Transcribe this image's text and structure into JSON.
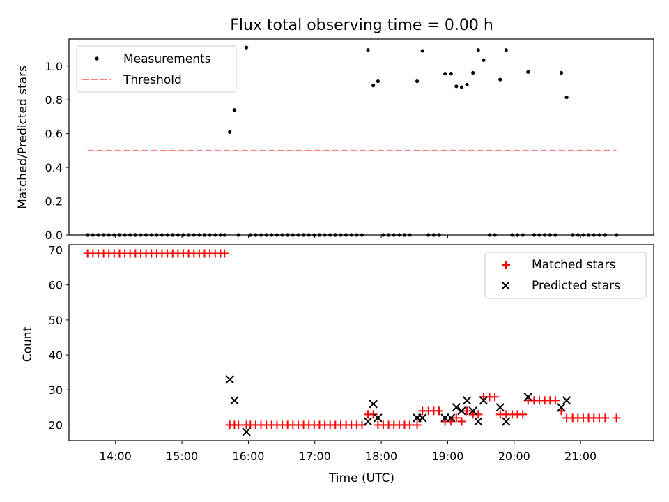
{
  "chart_data": [
    {
      "type": "scatter",
      "title": "Flux total observing time = 0.00 h",
      "xlabel": "",
      "ylabel": "Matched/Predicted stars",
      "xlim_hours": [
        13.3,
        22.1
      ],
      "ylim": [
        0,
        1.16
      ],
      "yticks": [
        0.0,
        0.2,
        0.4,
        0.6,
        0.8,
        1.0
      ],
      "ytick_labels": [
        "0.0",
        "0.2",
        "0.4",
        "0.6",
        "0.8",
        "1.0"
      ],
      "legend_position": "top-left",
      "series": [
        {
          "name": "Measurements",
          "color": "#000000",
          "marker": "dot",
          "points": [
            [
              13.58,
              0
            ],
            [
              13.66,
              0
            ],
            [
              13.74,
              0
            ],
            [
              13.82,
              0
            ],
            [
              13.9,
              0
            ],
            [
              13.98,
              0
            ],
            [
              14.06,
              0
            ],
            [
              14.14,
              0
            ],
            [
              14.22,
              0
            ],
            [
              14.3,
              0
            ],
            [
              14.38,
              0
            ],
            [
              14.46,
              0
            ],
            [
              14.54,
              0
            ],
            [
              14.62,
              0
            ],
            [
              14.7,
              0
            ],
            [
              14.78,
              0
            ],
            [
              14.86,
              0
            ],
            [
              14.94,
              0
            ],
            [
              15.02,
              0
            ],
            [
              15.1,
              0
            ],
            [
              15.18,
              0
            ],
            [
              15.26,
              0
            ],
            [
              15.34,
              0
            ],
            [
              15.42,
              0
            ],
            [
              15.5,
              0
            ],
            [
              15.58,
              0
            ],
            [
              15.64,
              0
            ],
            [
              15.72,
              0.61
            ],
            [
              15.79,
              0.74
            ],
            [
              15.85,
              0
            ],
            [
              15.97,
              1.11
            ],
            [
              16.03,
              0
            ],
            [
              16.11,
              0
            ],
            [
              16.19,
              0
            ],
            [
              16.27,
              0
            ],
            [
              16.35,
              0
            ],
            [
              16.43,
              0
            ],
            [
              16.51,
              0
            ],
            [
              16.59,
              0
            ],
            [
              16.67,
              0
            ],
            [
              16.75,
              0
            ],
            [
              16.83,
              0
            ],
            [
              16.91,
              0
            ],
            [
              16.99,
              0
            ],
            [
              17.07,
              0
            ],
            [
              17.15,
              0
            ],
            [
              17.23,
              0
            ],
            [
              17.31,
              0
            ],
            [
              17.39,
              0
            ],
            [
              17.47,
              0
            ],
            [
              17.55,
              0
            ],
            [
              17.63,
              0
            ],
            [
              17.71,
              0
            ],
            [
              17.8,
              1.095
            ],
            [
              17.88,
              0.885
            ],
            [
              17.95,
              0.91
            ],
            [
              18.03,
              0
            ],
            [
              18.11,
              0
            ],
            [
              18.19,
              0
            ],
            [
              18.27,
              0
            ],
            [
              18.35,
              0
            ],
            [
              18.43,
              0
            ],
            [
              18.54,
              0.91
            ],
            [
              18.62,
              1.09
            ],
            [
              18.71,
              0
            ],
            [
              18.79,
              0
            ],
            [
              18.87,
              0
            ],
            [
              18.96,
              0.955
            ],
            [
              19.05,
              0.955
            ],
            [
              19.13,
              0.88
            ],
            [
              19.21,
              0.875
            ],
            [
              19.29,
              0.89
            ],
            [
              19.38,
              0.96
            ],
            [
              19.46,
              1.095
            ],
            [
              19.54,
              1.035
            ],
            [
              19.63,
              0
            ],
            [
              19.71,
              0
            ],
            [
              19.79,
              0.92
            ],
            [
              19.88,
              1.095
            ],
            [
              19.97,
              0
            ],
            [
              20.05,
              0
            ],
            [
              20.13,
              0
            ],
            [
              20.21,
              0.965
            ],
            [
              20.3,
              0
            ],
            [
              20.38,
              0
            ],
            [
              20.46,
              0
            ],
            [
              20.54,
              0
            ],
            [
              20.62,
              0
            ],
            [
              20.71,
              0.96
            ],
            [
              20.79,
              0.815
            ],
            [
              20.88,
              0
            ],
            [
              20.96,
              0
            ],
            [
              21.04,
              0
            ],
            [
              21.12,
              0
            ],
            [
              21.2,
              0
            ],
            [
              21.28,
              0
            ],
            [
              21.37,
              0
            ],
            [
              21.54,
              0
            ]
          ]
        },
        {
          "name": "Threshold",
          "color": "#ff7f7f",
          "style": "dashed",
          "x_range_hours": [
            13.58,
            21.54
          ],
          "y": 0.5
        }
      ]
    },
    {
      "type": "scatter",
      "title": "",
      "xlabel": "Time (UTC)",
      "ylabel": "Count",
      "xlim_hours": [
        13.3,
        22.1
      ],
      "ylim": [
        15.5,
        71.5
      ],
      "yticks": [
        20,
        30,
        40,
        50,
        60,
        70
      ],
      "ytick_labels": [
        "20",
        "30",
        "40",
        "50",
        "60",
        "70"
      ],
      "xticks_hours": [
        14,
        15,
        16,
        17,
        18,
        19,
        20,
        21
      ],
      "xtick_labels": [
        "14:00",
        "15:00",
        "16:00",
        "17:00",
        "18:00",
        "19:00",
        "20:00",
        "21:00"
      ],
      "legend_position": "top-right",
      "series": [
        {
          "name": "Matched stars",
          "color": "#ff0000",
          "marker": "plus",
          "points": [
            [
              13.58,
              69
            ],
            [
              13.66,
              69
            ],
            [
              13.74,
              69
            ],
            [
              13.82,
              69
            ],
            [
              13.9,
              69
            ],
            [
              13.98,
              69
            ],
            [
              14.06,
              69
            ],
            [
              14.14,
              69
            ],
            [
              14.22,
              69
            ],
            [
              14.3,
              69
            ],
            [
              14.38,
              69
            ],
            [
              14.46,
              69
            ],
            [
              14.54,
              69
            ],
            [
              14.62,
              69
            ],
            [
              14.7,
              69
            ],
            [
              14.78,
              69
            ],
            [
              14.86,
              69
            ],
            [
              14.94,
              69
            ],
            [
              15.02,
              69
            ],
            [
              15.1,
              69
            ],
            [
              15.18,
              69
            ],
            [
              15.26,
              69
            ],
            [
              15.34,
              69
            ],
            [
              15.42,
              69
            ],
            [
              15.5,
              69
            ],
            [
              15.58,
              69
            ],
            [
              15.64,
              69
            ],
            [
              15.72,
              20
            ],
            [
              15.79,
              20
            ],
            [
              15.85,
              20
            ],
            [
              15.97,
              20
            ],
            [
              16.03,
              20
            ],
            [
              16.11,
              20
            ],
            [
              16.19,
              20
            ],
            [
              16.27,
              20
            ],
            [
              16.35,
              20
            ],
            [
              16.43,
              20
            ],
            [
              16.51,
              20
            ],
            [
              16.59,
              20
            ],
            [
              16.67,
              20
            ],
            [
              16.75,
              20
            ],
            [
              16.83,
              20
            ],
            [
              16.91,
              20
            ],
            [
              16.99,
              20
            ],
            [
              17.07,
              20
            ],
            [
              17.15,
              20
            ],
            [
              17.23,
              20
            ],
            [
              17.31,
              20
            ],
            [
              17.39,
              20
            ],
            [
              17.47,
              20
            ],
            [
              17.55,
              20
            ],
            [
              17.63,
              20
            ],
            [
              17.71,
              20
            ],
            [
              17.8,
              23
            ],
            [
              17.88,
              23
            ],
            [
              17.95,
              20
            ],
            [
              18.03,
              20
            ],
            [
              18.11,
              20
            ],
            [
              18.19,
              20
            ],
            [
              18.27,
              20
            ],
            [
              18.35,
              20
            ],
            [
              18.43,
              20
            ],
            [
              18.54,
              20
            ],
            [
              18.62,
              24
            ],
            [
              18.71,
              24
            ],
            [
              18.79,
              24
            ],
            [
              18.87,
              24
            ],
            [
              18.96,
              21
            ],
            [
              19.05,
              21
            ],
            [
              19.13,
              22
            ],
            [
              19.21,
              21
            ],
            [
              19.29,
              24
            ],
            [
              19.38,
              23
            ],
            [
              19.46,
              23
            ],
            [
              19.54,
              28
            ],
            [
              19.63,
              28
            ],
            [
              19.71,
              28
            ],
            [
              19.79,
              23
            ],
            [
              19.88,
              23
            ],
            [
              19.97,
              23
            ],
            [
              20.05,
              23
            ],
            [
              20.13,
              23
            ],
            [
              20.21,
              27
            ],
            [
              20.3,
              27
            ],
            [
              20.38,
              27
            ],
            [
              20.46,
              27
            ],
            [
              20.54,
              27
            ],
            [
              20.62,
              27
            ],
            [
              20.71,
              24
            ],
            [
              20.79,
              22
            ],
            [
              20.88,
              22
            ],
            [
              20.96,
              22
            ],
            [
              21.04,
              22
            ],
            [
              21.12,
              22
            ],
            [
              21.2,
              22
            ],
            [
              21.28,
              22
            ],
            [
              21.37,
              22
            ],
            [
              21.54,
              22
            ]
          ]
        },
        {
          "name": "Predicted stars",
          "color": "#000000",
          "marker": "x",
          "points": [
            [
              15.72,
              33
            ],
            [
              15.79,
              27
            ],
            [
              15.97,
              18
            ],
            [
              17.8,
              21
            ],
            [
              17.88,
              26
            ],
            [
              17.95,
              22
            ],
            [
              18.54,
              22
            ],
            [
              18.62,
              22
            ],
            [
              18.96,
              22
            ],
            [
              19.05,
              22
            ],
            [
              19.13,
              25
            ],
            [
              19.21,
              24
            ],
            [
              19.29,
              27
            ],
            [
              19.38,
              24
            ],
            [
              19.46,
              21
            ],
            [
              19.54,
              27
            ],
            [
              19.79,
              25
            ],
            [
              19.88,
              21
            ],
            [
              20.21,
              28
            ],
            [
              20.71,
              25
            ],
            [
              20.79,
              27
            ]
          ]
        }
      ]
    }
  ]
}
